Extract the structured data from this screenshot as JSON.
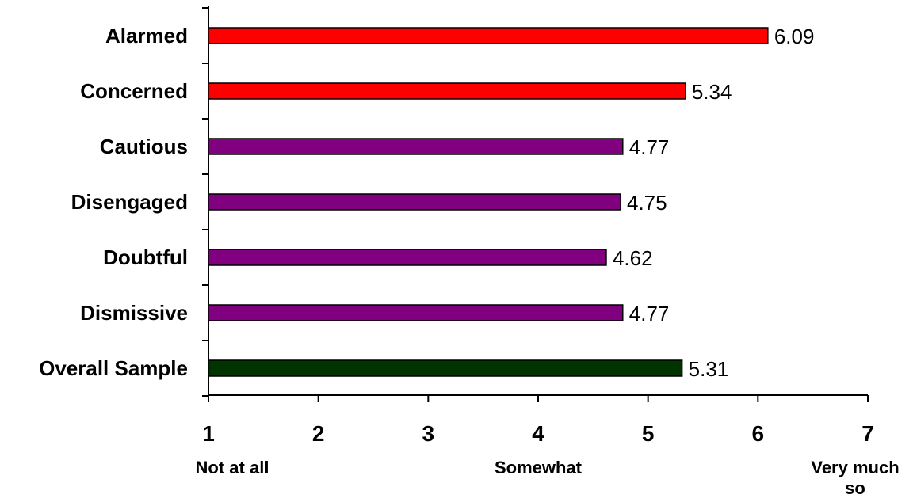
{
  "chart_data": {
    "type": "bar",
    "orientation": "horizontal",
    "categories": [
      "Alarmed",
      "Concerned",
      "Cautious",
      "Disengaged",
      "Doubtful",
      "Dismissive",
      "Overall Sample"
    ],
    "values": [
      6.09,
      5.34,
      4.77,
      4.75,
      4.62,
      4.77,
      5.31
    ],
    "value_labels": [
      "6.09",
      "5.34",
      "4.77",
      "4.75",
      "4.62",
      "4.77",
      "5.31"
    ],
    "bar_colors": [
      "#ff0000",
      "#ff0000",
      "#800080",
      "#800080",
      "#800080",
      "#800080",
      "#003300"
    ],
    "xlim": [
      1,
      7
    ],
    "xticks": [
      "1",
      "2",
      "3",
      "4",
      "5",
      "6",
      "7"
    ],
    "x_anchor_labels": [
      {
        "at": 1,
        "lines": [
          "Not at all"
        ]
      },
      {
        "at": 4,
        "lines": [
          "Somewhat"
        ]
      },
      {
        "at": 7,
        "lines": [
          "Very much",
          "so"
        ]
      }
    ],
    "title": "",
    "xlabel": "",
    "ylabel": "",
    "grid": false,
    "legend": "none"
  }
}
